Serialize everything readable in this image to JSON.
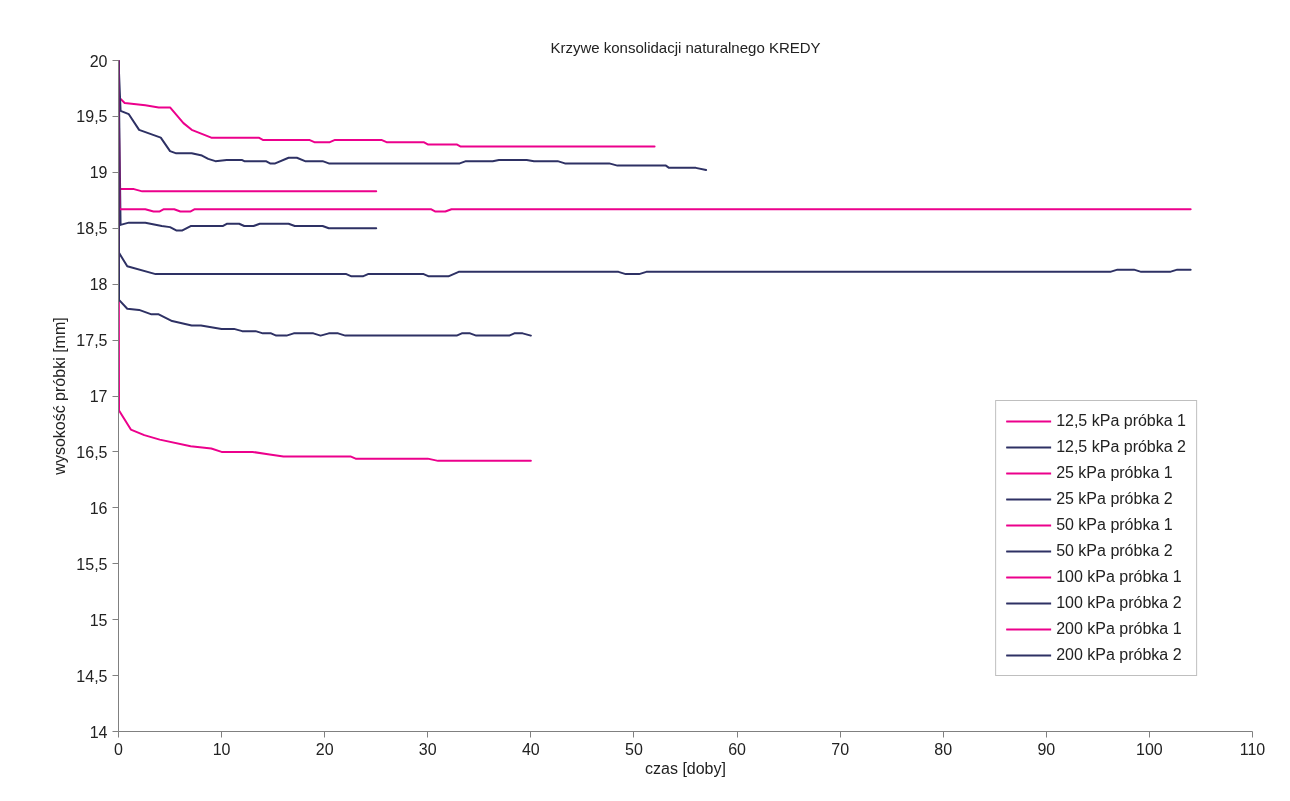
{
  "chart_data": {
    "type": "line",
    "title": "Krzywe konsolidacji naturalnego KREDY",
    "xlabel": "czas [doby]",
    "ylabel": "wysokość próbki [mm]",
    "xlim": [
      0,
      110
    ],
    "xticks": [
      0,
      10,
      20,
      30,
      40,
      50,
      60,
      70,
      80,
      90,
      100,
      110
    ],
    "ylim": [
      14,
      20
    ],
    "yticks": [
      {
        "value": 14,
        "label": "14"
      },
      {
        "value": 14.5,
        "label": "14,5"
      },
      {
        "value": 15,
        "label": "15"
      },
      {
        "value": 15.5,
        "label": "15,5"
      },
      {
        "value": 16,
        "label": "16"
      },
      {
        "value": 16.5,
        "label": "16,5"
      },
      {
        "value": 17,
        "label": "17"
      },
      {
        "value": 17.5,
        "label": "17,5"
      },
      {
        "value": 18,
        "label": "18"
      },
      {
        "value": 18.5,
        "label": "18,5"
      },
      {
        "value": 19,
        "label": "19"
      },
      {
        "value": 19.5,
        "label": "19,5"
      },
      {
        "value": 20,
        "label": "20"
      }
    ],
    "grid": false,
    "legend": "right",
    "marker": "none",
    "line_style": "solid",
    "series": [
      {
        "name": "12,5 kPa próbka 1",
        "color": "#ec008c",
        "x": [
          0,
          0.05,
          0.6,
          2.6,
          3.9,
          5,
          6.3,
          7.1,
          9,
          13.6,
          14,
          18.5,
          19,
          20.5,
          21,
          25.5,
          26,
          29.6,
          30,
          32.8,
          33.2,
          52
        ],
        "values": [
          20,
          19.67,
          19.62,
          19.6,
          19.58,
          19.58,
          19.44,
          19.38,
          19.31,
          19.31,
          19.29,
          19.29,
          19.27,
          19.27,
          19.29,
          19.29,
          19.27,
          19.27,
          19.25,
          19.25,
          19.23,
          19.23
        ]
      },
      {
        "name": "12,5 kPa próbka 2",
        "color": "#2e3164",
        "x": [
          0,
          0.2,
          1,
          2,
          4.1,
          5,
          5.6,
          7.1,
          8.1,
          8.7,
          9.4,
          10.5,
          12,
          12.2,
          14.3,
          14.7,
          15.2,
          16.5,
          17.3,
          18.1,
          19.8,
          20.4,
          33.1,
          33.7,
          36.3,
          36.9,
          39.6,
          40.3,
          42.6,
          43.3,
          47.6,
          48.4,
          53.1,
          53.4,
          56,
          57
        ],
        "values": [
          20,
          19.55,
          19.52,
          19.38,
          19.31,
          19.19,
          19.17,
          19.17,
          19.15,
          19.12,
          19.1,
          19.11,
          19.11,
          19.1,
          19.1,
          19.08,
          19.08,
          19.13,
          19.13,
          19.1,
          19.1,
          19.08,
          19.08,
          19.1,
          19.1,
          19.11,
          19.11,
          19.1,
          19.1,
          19.08,
          19.08,
          19.06,
          19.06,
          19.04,
          19.04,
          19.02
        ]
      },
      {
        "name": "25 kPa próbka 1",
        "color": "#ec008c",
        "x": [
          0,
          0.1,
          1.5,
          2.3,
          25
        ],
        "values": [
          20,
          18.85,
          18.85,
          18.83,
          18.83
        ]
      },
      {
        "name": "25 kPa próbka 2",
        "color": "#2e3164",
        "x": [
          0,
          0.2,
          1,
          2.6,
          4.2,
          5,
          5.6,
          6.2,
          7,
          10.1,
          10.5,
          11.7,
          12.2,
          13.1,
          13.7,
          16.5,
          17.1,
          19.8,
          20.4,
          25
        ],
        "values": [
          20,
          18.53,
          18.55,
          18.55,
          18.52,
          18.51,
          18.48,
          18.48,
          18.52,
          18.52,
          18.54,
          18.54,
          18.52,
          18.52,
          18.54,
          18.54,
          18.52,
          18.52,
          18.5,
          18.5
        ]
      },
      {
        "name": "50 kPa próbka 1",
        "color": "#ec008c",
        "x": [
          0,
          0.1,
          2.6,
          3.4,
          4,
          4.4,
          5.4,
          6,
          7,
          7.4,
          30.3,
          30.7,
          31.7,
          32.3,
          104
        ],
        "values": [
          20,
          18.67,
          18.67,
          18.65,
          18.65,
          18.67,
          18.67,
          18.65,
          18.65,
          18.67,
          18.67,
          18.65,
          18.65,
          18.67,
          18.67
        ]
      },
      {
        "name": "50 kPa próbka 2",
        "color": "#2e3164",
        "x": [
          0,
          0.05,
          0.85,
          3.6,
          22.1,
          22.6,
          23.7,
          24.2,
          29.6,
          30.1,
          32,
          33,
          48.5,
          49.2,
          50.5,
          51.2,
          96.2,
          96.9,
          98.5,
          99.2,
          102,
          102.7,
          104
        ],
        "values": [
          20,
          18.28,
          18.16,
          18.09,
          18.09,
          18.07,
          18.07,
          18.09,
          18.09,
          18.07,
          18.07,
          18.11,
          18.11,
          18.09,
          18.09,
          18.11,
          18.11,
          18.13,
          18.13,
          18.11,
          18.11,
          18.13,
          18.13
        ]
      },
      {
        "name": "100 kPa próbka 1",
        "color": "#ec008c",
        "x": [
          0,
          0.05,
          1.2,
          2.5,
          4,
          7,
          9,
          10,
          13,
          14.5,
          16,
          22.5,
          23,
          30,
          31,
          40
        ],
        "values": [
          20,
          16.87,
          16.7,
          16.65,
          16.61,
          16.55,
          16.53,
          16.5,
          16.5,
          16.48,
          16.46,
          16.46,
          16.44,
          16.44,
          16.42,
          16.42
        ]
      },
      {
        "name": "100 kPa próbka 2",
        "color": "#2e3164",
        "x": [
          0,
          0.05,
          0.85,
          2,
          3.2,
          3.9,
          5.2,
          7.1,
          8,
          10,
          11.2,
          12,
          13.3,
          14,
          14.8,
          15.3,
          16.3,
          17,
          18.9,
          19.6,
          20.4,
          21.3,
          22,
          32.8,
          33.3,
          34.1,
          34.7,
          37.9,
          38.4,
          39.2,
          40
        ],
        "values": [
          20,
          17.86,
          17.78,
          17.77,
          17.73,
          17.73,
          17.67,
          17.63,
          17.63,
          17.6,
          17.6,
          17.58,
          17.58,
          17.56,
          17.56,
          17.54,
          17.54,
          17.56,
          17.56,
          17.54,
          17.56,
          17.56,
          17.54,
          17.54,
          17.56,
          17.56,
          17.54,
          17.54,
          17.56,
          17.56,
          17.54
        ]
      },
      {
        "name": "200 kPa próbka 1",
        "color": "#ec008c"
      },
      {
        "name": "200 kPa próbka 2",
        "color": "#2e3164"
      }
    ]
  }
}
